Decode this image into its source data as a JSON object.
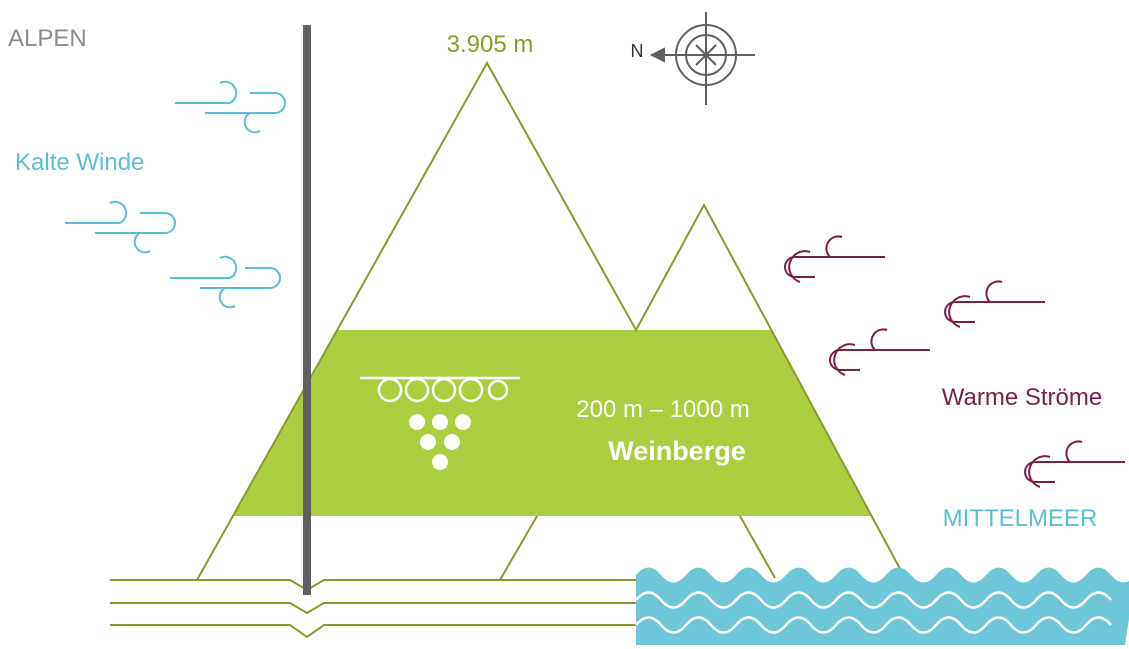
{
  "labels": {
    "alps": "ALPEN",
    "peak": "3.905 m",
    "north": "N",
    "cold": "Kalte Winde",
    "altitude": "200 m – 1000 m",
    "vineyards": "Weinberge",
    "warm": "Warme Ströme",
    "sea": "MITTELMEER"
  }
}
